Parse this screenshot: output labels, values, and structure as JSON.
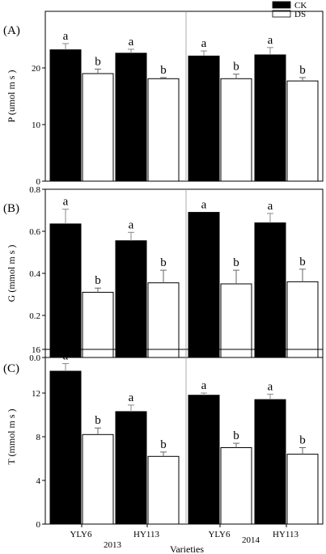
{
  "chart_data": {
    "type": "bar",
    "legend": {
      "placement": "top-right",
      "entries": [
        {
          "name": "CK",
          "color": "#000000"
        },
        {
          "name": "DS",
          "color": "#ffffff"
        }
      ]
    },
    "categories": [
      "YLY6",
      "HY113",
      "YLY6",
      "HY113"
    ],
    "year_labels": [
      "2013",
      "2014"
    ],
    "xlabel": "Varieties",
    "panels": [
      {
        "label": "(A)",
        "ylabel": "P  (umol m  s  )",
        "ylim": [
          0,
          30
        ],
        "ticks": [
          0,
          10,
          20
        ],
        "series": [
          {
            "name": "CK",
            "values": [
              23.2,
              22.6,
              22.1,
              22.3
            ],
            "errors": [
              1.1,
              0.7,
              0.9,
              1.3
            ],
            "letters": [
              "a",
              "a",
              "a",
              "a"
            ]
          },
          {
            "name": "DS",
            "values": [
              19.0,
              18.1,
              18.1,
              17.7
            ],
            "errors": [
              0.8,
              0.2,
              0.8,
              0.6
            ],
            "letters": [
              "b",
              "b",
              "b",
              "b"
            ]
          }
        ]
      },
      {
        "label": "(B)",
        "ylabel": "G  (mmol m  s  )",
        "ylim": [
          0,
          0.8
        ],
        "ticks": [
          0.0,
          0.2,
          0.4,
          0.6,
          0.8
        ],
        "series": [
          {
            "name": "CK",
            "values": [
              0.635,
              0.555,
              0.69,
              0.64
            ],
            "errors": [
              0.07,
              0.04,
              0.0,
              0.045
            ],
            "letters": [
              "a",
              "a",
              "a",
              "a"
            ]
          },
          {
            "name": "DS",
            "values": [
              0.31,
              0.355,
              0.35,
              0.36
            ],
            "errors": [
              0.02,
              0.06,
              0.065,
              0.06
            ],
            "letters": [
              "b",
              "b",
              "b",
              "b"
            ]
          }
        ]
      },
      {
        "label": "(C)",
        "ylabel": "T  (mmol m  s  )",
        "ylim": [
          0,
          16
        ],
        "ticks": [
          0,
          4,
          8,
          12,
          16
        ],
        "series": [
          {
            "name": "CK",
            "values": [
              14.0,
              10.3,
              11.8,
              11.4
            ],
            "errors": [
              0.7,
              0.6,
              0.2,
              0.5
            ],
            "letters": [
              "a",
              "a",
              "a",
              "a"
            ]
          },
          {
            "name": "DS",
            "values": [
              8.2,
              6.2,
              7.0,
              6.4
            ],
            "errors": [
              0.6,
              0.4,
              0.4,
              0.6
            ],
            "letters": [
              "b",
              "b",
              "b",
              "b"
            ]
          }
        ]
      }
    ]
  }
}
